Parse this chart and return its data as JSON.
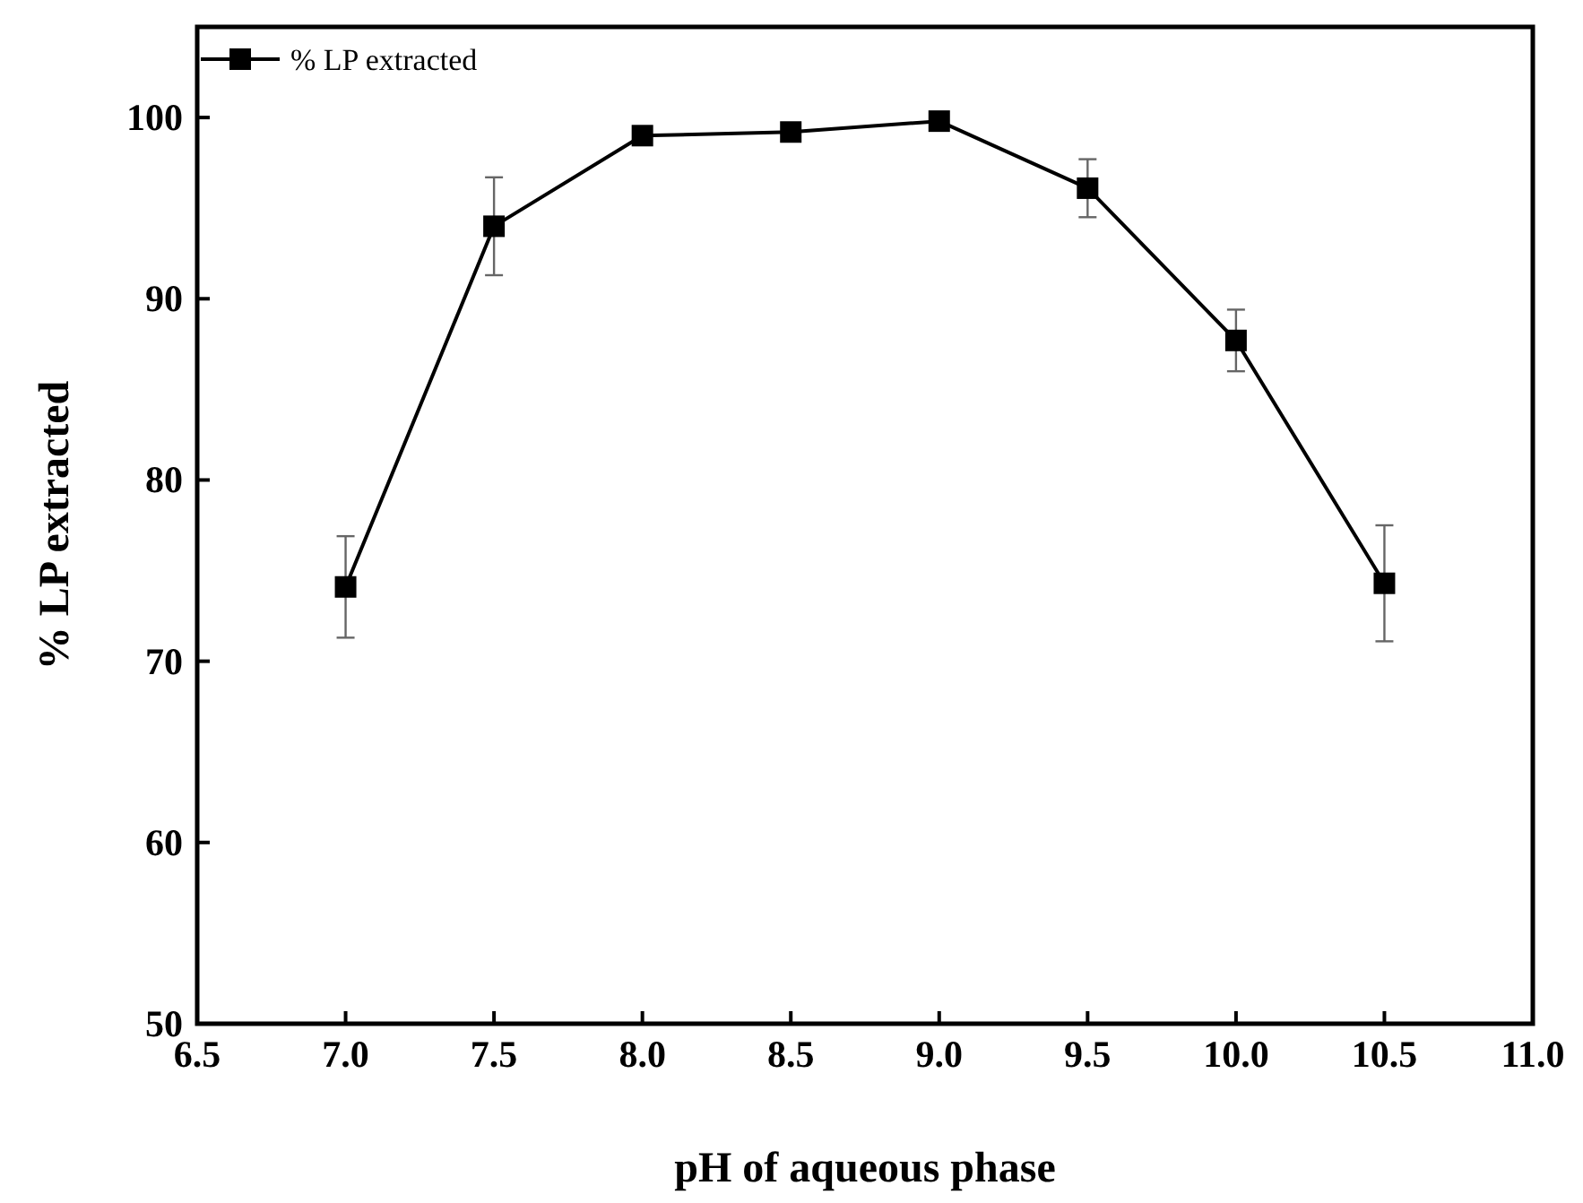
{
  "chart_data": {
    "type": "line",
    "xlabel": "pH of aqueous phase",
    "ylabel": "% LP extracted",
    "x": [
      7.0,
      7.5,
      8.0,
      8.5,
      9.0,
      9.5,
      10.0,
      10.5
    ],
    "series": [
      {
        "name": "% LP extracted",
        "color": "#000000",
        "values": [
          74.1,
          94.0,
          99.0,
          99.2,
          99.8,
          96.1,
          87.7,
          74.3
        ],
        "errors": [
          2.8,
          2.7,
          null,
          null,
          null,
          1.6,
          1.7,
          3.2
        ]
      }
    ],
    "xlim": [
      6.5,
      11.0
    ],
    "xticks": [
      {
        "value": 6.5,
        "label": "6.5"
      },
      {
        "value": 7,
        "label": "7.0"
      },
      {
        "value": 7.5,
        "label": "7.5"
      },
      {
        "value": 8,
        "label": "8.0"
      },
      {
        "value": 8.5,
        "label": "8.5"
      },
      {
        "value": 9,
        "label": "9.0"
      },
      {
        "value": 9.5,
        "label": "9.5"
      },
      {
        "value": 10,
        "label": "10.0"
      },
      {
        "value": 10.5,
        "label": "10.5"
      },
      {
        "value": 11,
        "label": "11.0"
      }
    ],
    "ylim": [
      50,
      105
    ],
    "yticks": [
      50,
      60,
      70,
      80,
      90,
      100
    ],
    "marker": "square",
    "line_style": "solid",
    "legend": "top left",
    "grid": false
  }
}
